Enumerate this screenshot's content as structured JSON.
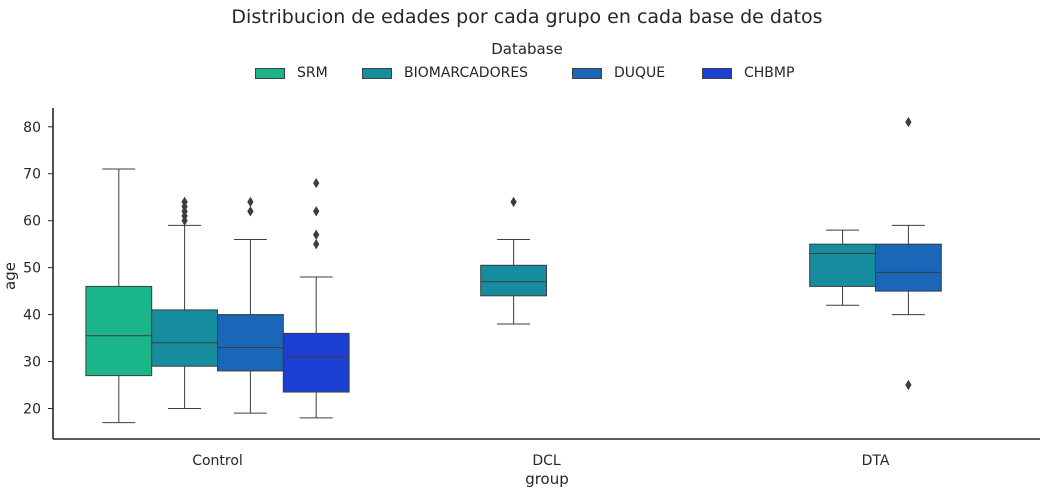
{
  "chart_data": {
    "type": "box",
    "title": "Distribucion de edades por cada grupo en cada base de datos",
    "xlabel": "group",
    "ylabel": "age",
    "categories": [
      "Control",
      "DCL",
      "DTA"
    ],
    "yticks": [
      20,
      30,
      40,
      50,
      60,
      70,
      80
    ],
    "ylim": [
      13.5,
      84
    ],
    "grid": false,
    "legend": {
      "title": "Database",
      "placement": "top-center",
      "entries": [
        "SRM",
        "BIOMARCADORES",
        "DUQUE",
        "CHBMP"
      ]
    },
    "series": [
      {
        "name": "SRM",
        "color": "#1ab68a",
        "boxes": {
          "Control": {
            "whislo": 17,
            "q1": 27,
            "med": 35.5,
            "q3": 46,
            "whishi": 71,
            "fliers": []
          }
        }
      },
      {
        "name": "BIOMARCADORES",
        "color": "#168d9e",
        "boxes": {
          "Control": {
            "whislo": 20,
            "q1": 29,
            "med": 34,
            "q3": 41,
            "whishi": 59,
            "fliers": [
              60,
              61,
              62,
              63,
              64
            ]
          },
          "DCL": {
            "whislo": 38,
            "q1": 44,
            "med": 47,
            "q3": 50.5,
            "whishi": 56,
            "fliers": [
              64
            ]
          },
          "DTA": {
            "whislo": 42,
            "q1": 46,
            "med": 53,
            "q3": 55,
            "whishi": 58,
            "fliers": []
          }
        }
      },
      {
        "name": "DUQUE",
        "color": "#1a66b8",
        "boxes": {
          "Control": {
            "whislo": 19,
            "q1": 28,
            "med": 33,
            "q3": 40,
            "whishi": 56,
            "fliers": [
              62,
              64
            ]
          },
          "DTA": {
            "whislo": 40,
            "q1": 45,
            "med": 49,
            "q3": 55,
            "whishi": 59,
            "fliers": [
              25,
              81
            ]
          }
        }
      },
      {
        "name": "CHBMP",
        "color": "#1a3fd2",
        "boxes": {
          "Control": {
            "whislo": 18,
            "q1": 23.5,
            "med": 31,
            "q3": 36,
            "whishi": 48,
            "fliers": [
              55,
              57,
              62,
              68
            ]
          }
        }
      }
    ]
  }
}
